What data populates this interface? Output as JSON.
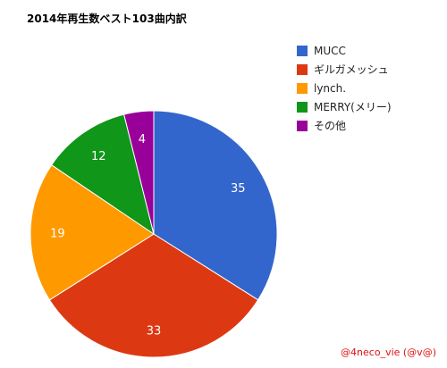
{
  "chart_data": {
    "type": "pie",
    "title": "2014年再生数ベスト103曲内訳",
    "categories": [
      "MUCC",
      "ギルガメッシュ",
      "lynch.",
      "MERRY(メリー)",
      "その他"
    ],
    "values": [
      35,
      33,
      19,
      12,
      4
    ],
    "labels": [
      "35",
      "33",
      "19",
      "12",
      "4"
    ],
    "colors": [
      "#3366cc",
      "#dc3912",
      "#ff9900",
      "#109618",
      "#990099"
    ],
    "legend_position": "right",
    "start_angle": "12 o'clock, clockwise"
  },
  "credit": "@4neco_vie (@v@)"
}
